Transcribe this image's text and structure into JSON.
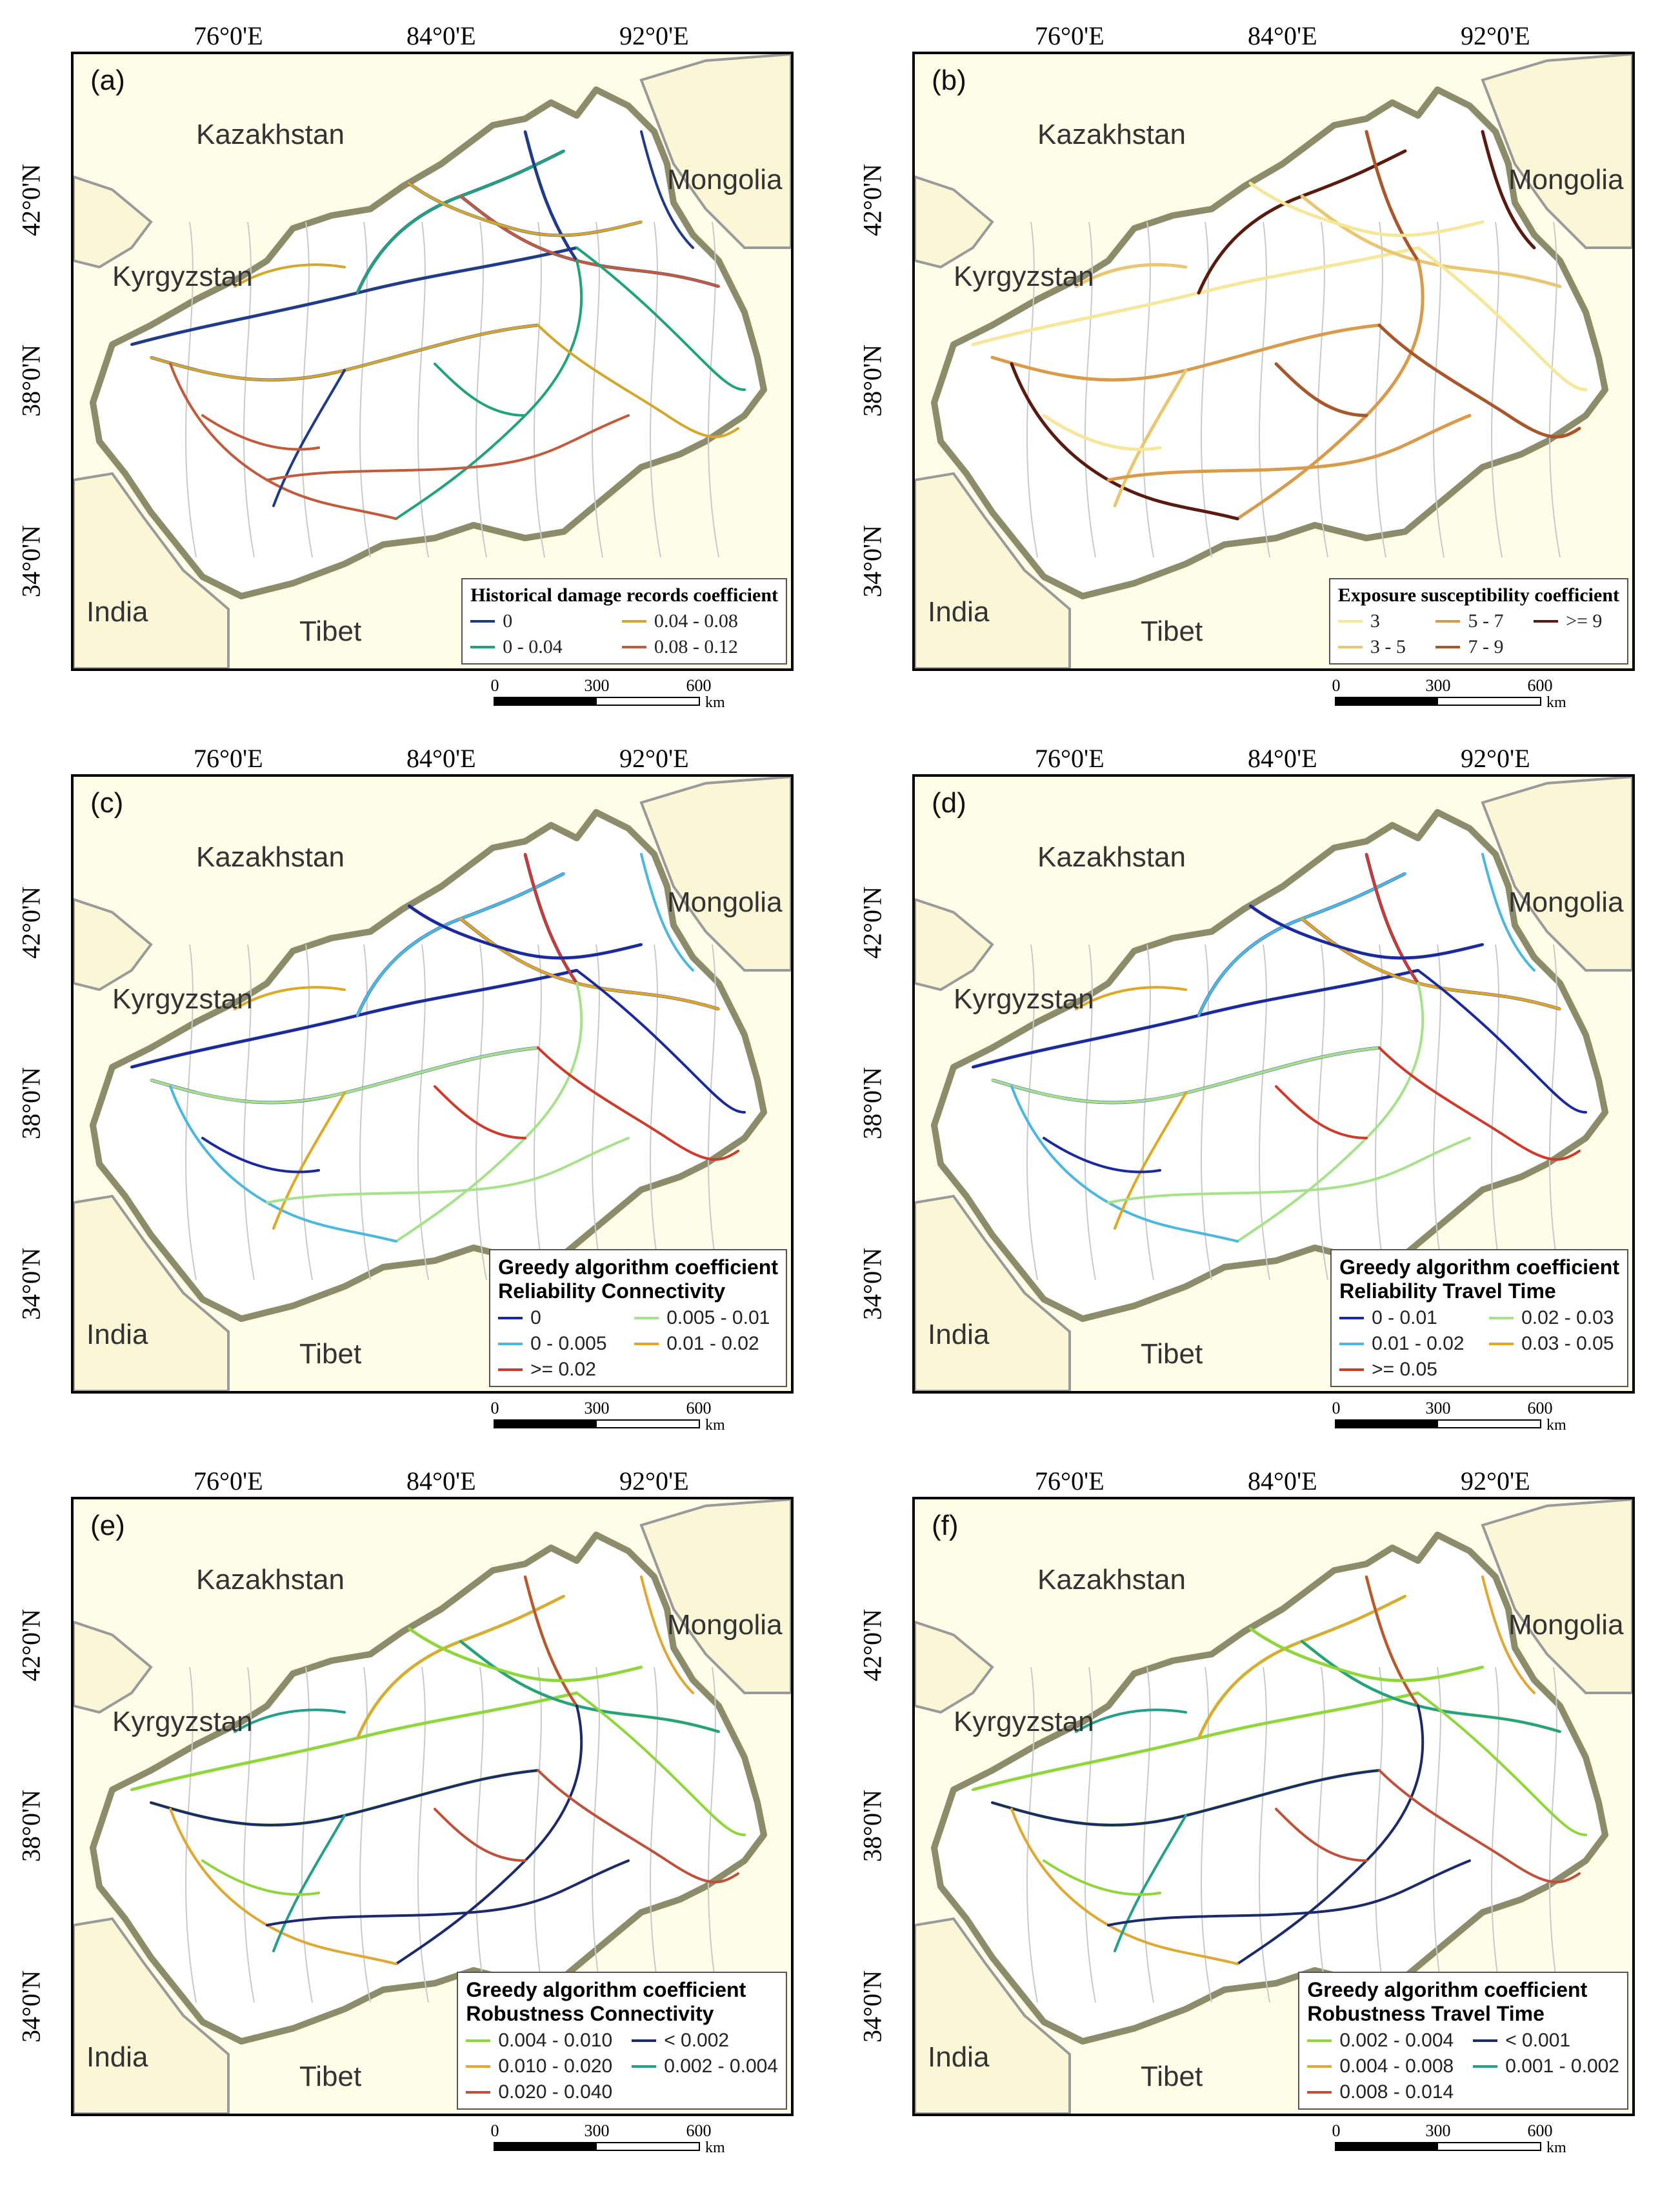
{
  "axes": {
    "lon_labels": [
      "76°0'E",
      "84°0'E",
      "92°0'E"
    ],
    "lat_labels": [
      "42°0'N",
      "38°0'N",
      "34°0'N"
    ]
  },
  "places": {
    "kazakhstan": "Kazakhstan",
    "mongolia": "Mongolia",
    "kyrgyzstan": "Kyrgyzstan",
    "india": "India",
    "tibet": "Tibet"
  },
  "scale": {
    "zero": "0",
    "mid": "300",
    "max": "600",
    "unit": "km"
  },
  "panels": [
    {
      "tag": "(a)",
      "legend_title": "Historical damage records coefficient",
      "legend_title2": "",
      "classes": [
        {
          "label": "0",
          "color": "#1f3a8a"
        },
        {
          "label": "0.04 - 0.08",
          "color": "#d4a72c"
        },
        {
          "label": "0 - 0.04",
          "color": "#1fa37a"
        },
        {
          "label": "0.08 - 0.12",
          "color": "#c25a3c"
        }
      ]
    },
    {
      "tag": "(b)",
      "legend_title": "Exposure susceptibility coefficient",
      "legend_title2": "",
      "classes": [
        {
          "label": "3",
          "color": "#f6e79a"
        },
        {
          "label": "5 - 7",
          "color": "#d99a4a"
        },
        {
          "label": ">= 9",
          "color": "#5a1a10"
        },
        {
          "label": "3 - 5",
          "color": "#e9c670"
        },
        {
          "label": "7 - 9",
          "color": "#a8562a"
        }
      ]
    },
    {
      "tag": "(c)",
      "legend_title": "Greedy algorithm coefficient",
      "legend_title2": "Reliability Connectivity",
      "classes": [
        {
          "label": "0",
          "color": "#1a2a9c"
        },
        {
          "label": "0.005 - 0.01",
          "color": "#a6e28a"
        },
        {
          "label": "0 - 0.005",
          "color": "#4bb8e0"
        },
        {
          "label": "0.01 - 0.02",
          "color": "#e0a820"
        },
        {
          "label": ">= 0.02",
          "color": "#d03a2a"
        }
      ]
    },
    {
      "tag": "(d)",
      "legend_title": "Greedy algorithm coefficient",
      "legend_title2": "Reliability Travel Time",
      "classes": [
        {
          "label": "0 - 0.01",
          "color": "#1a2a9c"
        },
        {
          "label": "0.02 - 0.03",
          "color": "#a6e28a"
        },
        {
          "label": "0.01 - 0.02",
          "color": "#4bb8e0"
        },
        {
          "label": "0.03 - 0.05",
          "color": "#e0a820"
        },
        {
          "label": ">= 0.05",
          "color": "#d03a2a"
        }
      ]
    },
    {
      "tag": "(e)",
      "legend_title": "Greedy algorithm coefficient",
      "legend_title2": "Robustness Connectivity",
      "classes": [
        {
          "label": "0.004 - 0.010",
          "color": "#8fd63a"
        },
        {
          "label": "< 0.002",
          "color": "#1a2a6c"
        },
        {
          "label": "0.010 - 0.020",
          "color": "#e0a830"
        },
        {
          "label": "0.002 - 0.004",
          "color": "#22a08a"
        },
        {
          "label": "0.020 - 0.040",
          "color": "#c0503a"
        }
      ]
    },
    {
      "tag": "(f)",
      "legend_title": "Greedy algorithm coefficient",
      "legend_title2": "Robustness Travel Time",
      "classes": [
        {
          "label": "0.002 - 0.004",
          "color": "#8fd63a"
        },
        {
          "label": "< 0.001",
          "color": "#1a2a6c"
        },
        {
          "label": "0.004 - 0.008",
          "color": "#e0a830"
        },
        {
          "label": "0.001 - 0.002",
          "color": "#22a08a"
        },
        {
          "label": "0.008 - 0.014",
          "color": "#c0503a"
        }
      ]
    }
  ]
}
